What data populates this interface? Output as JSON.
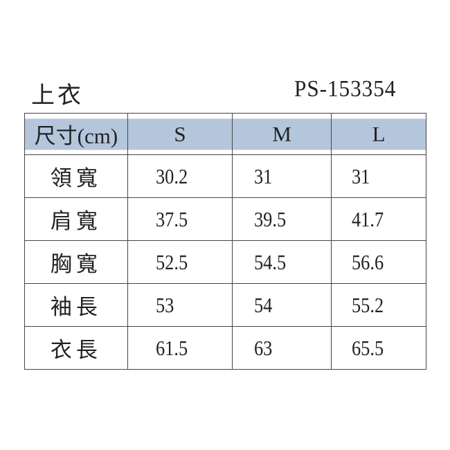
{
  "title": "上衣",
  "product_code": "PS-153354",
  "header_color": "#b4c6dc",
  "table": {
    "headers": [
      "尺寸(cm)",
      "S",
      "M",
      "L"
    ],
    "rows": [
      {
        "label": "領寬",
        "values": [
          "30.2",
          "31",
          "31"
        ]
      },
      {
        "label": "肩寬",
        "values": [
          "37.5",
          "39.5",
          "41.7"
        ]
      },
      {
        "label": "胸寬",
        "values": [
          "52.5",
          "54.5",
          "56.6"
        ]
      },
      {
        "label": "袖長",
        "values": [
          "53",
          "54",
          "55.2"
        ]
      },
      {
        "label": "衣長",
        "values": [
          "61.5",
          "63",
          "65.5"
        ]
      }
    ]
  }
}
